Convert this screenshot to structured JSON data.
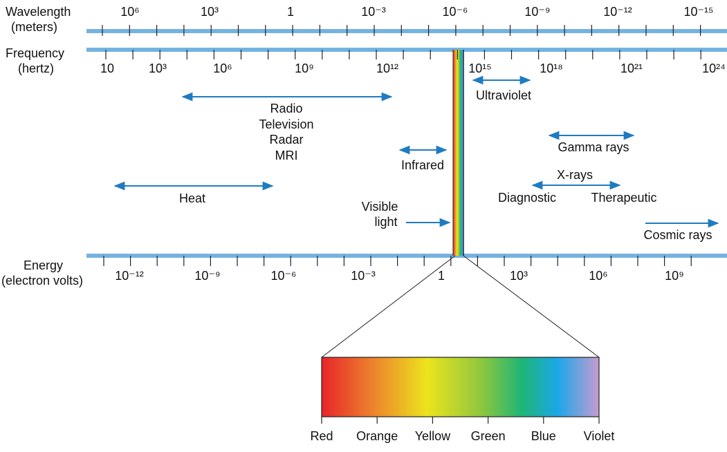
{
  "axes": {
    "wavelength": {
      "label": [
        "Wavelength",
        "(meters)"
      ],
      "ticks": [
        "10⁶",
        "10³",
        "1",
        "10⁻³",
        "10⁻⁶",
        "10⁻⁹",
        "10⁻¹²",
        "10⁻¹⁵"
      ]
    },
    "frequency": {
      "label": [
        "Frequency",
        "(hertz)"
      ],
      "ticks": [
        "10",
        "10³",
        "10⁶",
        "10⁹",
        "10¹²",
        "10¹⁵",
        "10¹⁸",
        "10²¹",
        "10²⁴"
      ]
    },
    "energy": {
      "label": [
        "Energy",
        "(electron volts)"
      ],
      "ticks": [
        "10⁻¹²",
        "10⁻⁹",
        "10⁻⁶",
        "10⁻³",
        "1",
        "10³",
        "10⁶",
        "10⁹"
      ]
    }
  },
  "bands": {
    "radio": [
      "Radio",
      "Television",
      "Radar",
      "MRI"
    ],
    "infrared": "Infrared",
    "heat": "Heat",
    "ultraviolet": "Ultraviolet",
    "gamma": "Gamma rays",
    "xrays": {
      "title": "X-rays",
      "low": "Diagnostic",
      "high": "Therapeutic"
    },
    "visible": [
      "Visible",
      "light"
    ],
    "cosmic": "Cosmic rays"
  },
  "visible_spectrum": {
    "colors": [
      "Red",
      "Orange",
      "Yellow",
      "Green",
      "Blue",
      "Violet"
    ]
  }
}
